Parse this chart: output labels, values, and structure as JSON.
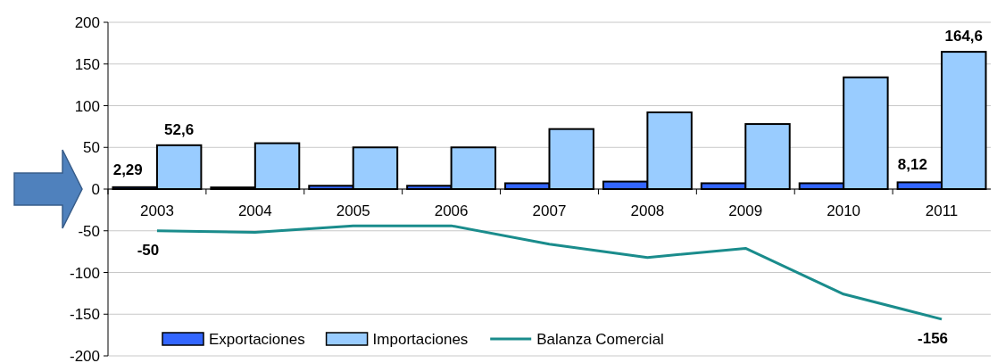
{
  "chart_data": {
    "type": "bar",
    "categories": [
      "2003",
      "2004",
      "2005",
      "2006",
      "2007",
      "2008",
      "2009",
      "2010",
      "2011"
    ],
    "series": [
      {
        "name": "Exportaciones",
        "color": "#3366ff",
        "values": [
          2.29,
          2,
          4,
          4,
          7,
          9,
          7,
          7,
          8.12
        ],
        "value_labels": [
          "2,29",
          null,
          null,
          null,
          null,
          null,
          null,
          null,
          "8,12"
        ]
      },
      {
        "name": "Importaciones",
        "color": "#99ccff",
        "values": [
          52.6,
          55,
          50,
          50,
          72,
          92,
          78,
          134,
          164.6
        ],
        "value_labels": [
          "52,6",
          null,
          null,
          null,
          null,
          null,
          null,
          null,
          "164,6"
        ]
      },
      {
        "name": "Balanza Comercial",
        "type": "line",
        "color": "#1a8c8c",
        "values": [
          -50,
          -52,
          -44,
          -44,
          -66,
          -82,
          -71,
          -126,
          -156
        ],
        "value_labels": [
          "-50",
          null,
          null,
          null,
          null,
          null,
          null,
          null,
          "-156"
        ]
      }
    ],
    "ylim": [
      -200,
      200
    ],
    "yticks": [
      -200,
      -150,
      -100,
      -50,
      0,
      50,
      100,
      150,
      200
    ],
    "grid": "y",
    "legend": "bottom"
  }
}
